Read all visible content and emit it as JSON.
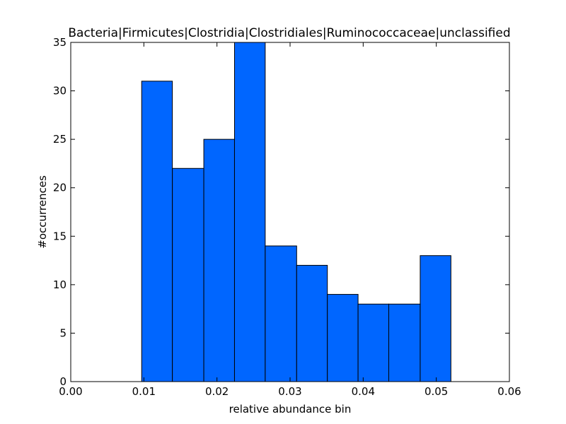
{
  "chart_data": {
    "type": "bar",
    "title": "Bacteria|Firmicutes|Clostridia|Clostridiales|Ruminococcaceae|unclassified",
    "xlabel": "relative abundance bin",
    "ylabel": "#occurrences",
    "xlim": [
      0.0,
      0.06
    ],
    "ylim": [
      0,
      35
    ],
    "x_ticks": [
      "0.00",
      "0.01",
      "0.02",
      "0.03",
      "0.04",
      "0.05",
      "0.06"
    ],
    "y_ticks": [
      "0",
      "5",
      "10",
      "15",
      "20",
      "25",
      "30",
      "35"
    ],
    "bins": [
      {
        "x0": 0.0097,
        "x1": 0.0139,
        "count": 31
      },
      {
        "x0": 0.0139,
        "x1": 0.0182,
        "count": 22
      },
      {
        "x0": 0.0182,
        "x1": 0.0224,
        "count": 25
      },
      {
        "x0": 0.0224,
        "x1": 0.0266,
        "count": 35
      },
      {
        "x0": 0.0266,
        "x1": 0.0309,
        "count": 14
      },
      {
        "x0": 0.0309,
        "x1": 0.0351,
        "count": 12
      },
      {
        "x0": 0.0351,
        "x1": 0.0393,
        "count": 9
      },
      {
        "x0": 0.0393,
        "x1": 0.0435,
        "count": 8
      },
      {
        "x0": 0.0435,
        "x1": 0.0478,
        "count": 8
      },
      {
        "x0": 0.0478,
        "x1": 0.052,
        "count": 13
      }
    ],
    "bar_color": "#0066ff",
    "edge_color": "#000000",
    "grid": false,
    "legend": "none"
  }
}
